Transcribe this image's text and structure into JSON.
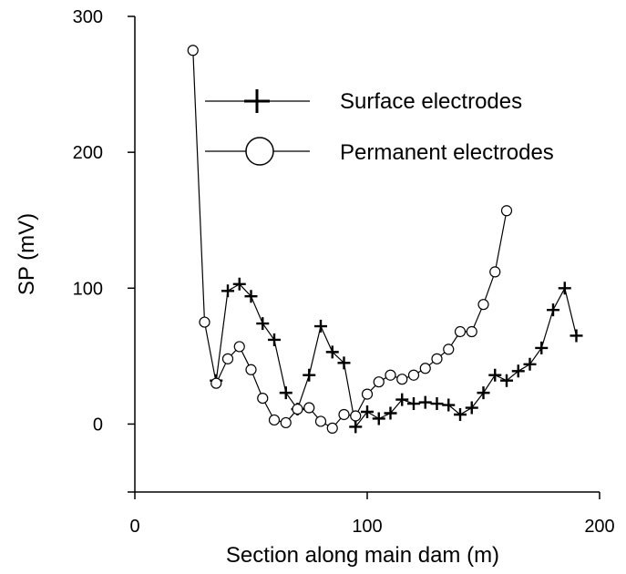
{
  "chart_data": {
    "type": "line",
    "title": "",
    "xlabel": "Section along main dam (m)",
    "ylabel": "SP (mV)",
    "xlim": [
      0,
      200
    ],
    "ylim": [
      -50,
      300
    ],
    "x_ticks": [
      0,
      100,
      200
    ],
    "y_ticks": [
      0,
      100,
      200,
      300
    ],
    "grid": false,
    "legend_position": "top-right",
    "series": [
      {
        "name": "Surface electrodes",
        "marker": "plus",
        "color": "#000000",
        "points": [
          [
            35,
            32
          ],
          [
            40,
            98
          ],
          [
            45,
            103
          ],
          [
            50,
            94
          ],
          [
            55,
            74
          ],
          [
            60,
            62
          ],
          [
            65,
            23
          ],
          [
            70,
            11
          ],
          [
            75,
            36
          ],
          [
            80,
            72
          ],
          [
            85,
            53
          ],
          [
            90,
            45
          ],
          [
            95,
            -2
          ],
          [
            100,
            9
          ],
          [
            105,
            4
          ],
          [
            110,
            8
          ],
          [
            115,
            18
          ],
          [
            120,
            15
          ],
          [
            125,
            16
          ],
          [
            130,
            15
          ],
          [
            135,
            14
          ],
          [
            140,
            7
          ],
          [
            145,
            12
          ],
          [
            150,
            23
          ],
          [
            155,
            36
          ],
          [
            160,
            32
          ],
          [
            165,
            39
          ],
          [
            170,
            44
          ],
          [
            175,
            56
          ],
          [
            180,
            84
          ],
          [
            185,
            100
          ],
          [
            190,
            65
          ]
        ]
      },
      {
        "name": "Permanent electrodes",
        "marker": "circle",
        "color": "#000000",
        "points": [
          [
            25,
            275
          ],
          [
            30,
            75
          ],
          [
            35,
            30
          ],
          [
            40,
            48
          ],
          [
            45,
            57
          ],
          [
            50,
            40
          ],
          [
            55,
            19
          ],
          [
            60,
            3
          ],
          [
            65,
            1
          ],
          [
            70,
            11
          ],
          [
            75,
            12
          ],
          [
            80,
            2
          ],
          [
            85,
            -3
          ],
          [
            90,
            7
          ],
          [
            95,
            6
          ],
          [
            100,
            22
          ],
          [
            105,
            31
          ],
          [
            110,
            36
          ],
          [
            115,
            33
          ],
          [
            120,
            36
          ],
          [
            125,
            41
          ],
          [
            130,
            48
          ],
          [
            135,
            55
          ],
          [
            140,
            68
          ],
          [
            145,
            68
          ],
          [
            150,
            88
          ],
          [
            155,
            112
          ],
          [
            160,
            157
          ]
        ]
      }
    ]
  }
}
